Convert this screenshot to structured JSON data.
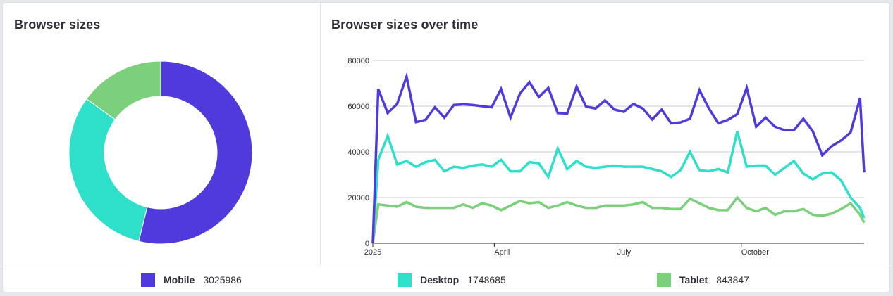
{
  "donut_panel": {
    "title": "Browser sizes"
  },
  "line_panel": {
    "title": "Browser sizes over time"
  },
  "colors": {
    "Mobile": "#4f3bdb",
    "Desktop": "#2edfca",
    "Tablet": "#7ccf7b"
  },
  "legend": [
    {
      "label": "Mobile",
      "value": "3025986",
      "color": "#4f3bdb"
    },
    {
      "label": "Desktop",
      "value": "1748685",
      "color": "#2edfca"
    },
    {
      "label": "Tablet",
      "value": "843847",
      "color": "#7ccf7b"
    }
  ],
  "chart_data": [
    {
      "type": "pie",
      "title": "Browser sizes",
      "categories": [
        "Mobile",
        "Desktop",
        "Tablet"
      ],
      "values": [
        3025986,
        1748685,
        843847
      ]
    },
    {
      "type": "line",
      "title": "Browser sizes over time",
      "xlabel": "",
      "ylabel": "",
      "ylim": [
        0,
        80000
      ],
      "y_ticks": [
        "0",
        "20000",
        "40000",
        "60000",
        "80000"
      ],
      "x_ticks": [
        "2025",
        "April",
        "July",
        "October"
      ],
      "x_tick_dates": [
        "2025-01-01",
        "2025-04-01",
        "2025-07-01",
        "2025-10-01"
      ],
      "xlim": [
        "2025-01-01",
        "2025-12-31"
      ],
      "grid": "horizontal",
      "x": [
        "2025-01-01",
        "2025-01-05",
        "2025-01-12",
        "2025-01-19",
        "2025-01-26",
        "2025-02-02",
        "2025-02-09",
        "2025-02-16",
        "2025-02-23",
        "2025-03-02",
        "2025-03-09",
        "2025-03-16",
        "2025-03-23",
        "2025-03-30",
        "2025-04-06",
        "2025-04-13",
        "2025-04-20",
        "2025-04-27",
        "2025-05-04",
        "2025-05-11",
        "2025-05-18",
        "2025-05-25",
        "2025-06-01",
        "2025-06-08",
        "2025-06-15",
        "2025-06-22",
        "2025-06-29",
        "2025-07-06",
        "2025-07-13",
        "2025-07-20",
        "2025-07-27",
        "2025-08-03",
        "2025-08-10",
        "2025-08-17",
        "2025-08-24",
        "2025-08-31",
        "2025-09-07",
        "2025-09-14",
        "2025-09-21",
        "2025-09-28",
        "2025-10-05",
        "2025-10-12",
        "2025-10-19",
        "2025-10-26",
        "2025-11-02",
        "2025-11-09",
        "2025-11-16",
        "2025-11-23",
        "2025-11-30",
        "2025-12-07",
        "2025-12-14",
        "2025-12-21",
        "2025-12-28",
        "2025-12-31"
      ],
      "series": [
        {
          "name": "Mobile",
          "values": [
            0,
            67500,
            57000,
            61000,
            73000,
            53000,
            54000,
            59500,
            55000,
            60500,
            60800,
            60500,
            60000,
            59500,
            67500,
            55000,
            65500,
            70500,
            64000,
            68000,
            57000,
            56800,
            68500,
            59800,
            59000,
            62500,
            58500,
            57500,
            61000,
            59000,
            54200,
            58500,
            52500,
            52900,
            54500,
            67000,
            59000,
            52500,
            54000,
            56500,
            68000,
            51000,
            55000,
            51000,
            49500,
            49500,
            54500,
            49000,
            38500,
            42500,
            45000,
            48500,
            63500,
            31000
          ]
        },
        {
          "name": "Desktop",
          "values": [
            0,
            36500,
            47000,
            34500,
            36000,
            33500,
            35500,
            36500,
            31500,
            33500,
            33000,
            34000,
            34500,
            33500,
            36500,
            31500,
            31500,
            35500,
            35000,
            29000,
            41500,
            32500,
            36000,
            33500,
            33000,
            33500,
            34000,
            33500,
            33500,
            33500,
            32500,
            31500,
            29000,
            32000,
            40000,
            32000,
            31500,
            32500,
            31000,
            49000,
            33500,
            34000,
            34000,
            30000,
            33000,
            36000,
            30500,
            28000,
            30500,
            31000,
            27500,
            20000,
            15500,
            11000
          ]
        },
        {
          "name": "Tablet",
          "values": [
            0,
            17000,
            16500,
            16000,
            18000,
            16000,
            15500,
            15500,
            15500,
            15500,
            17000,
            15500,
            17500,
            16500,
            14500,
            16500,
            18500,
            17500,
            18000,
            15500,
            16500,
            18000,
            16500,
            15500,
            15500,
            16500,
            16500,
            16500,
            17000,
            18000,
            15500,
            15500,
            15000,
            15000,
            19500,
            17500,
            15500,
            14500,
            14500,
            20000,
            15500,
            14000,
            15500,
            12500,
            14000,
            14000,
            15000,
            12500,
            12000,
            13000,
            15000,
            17500,
            12500,
            9000
          ]
        }
      ]
    }
  ]
}
